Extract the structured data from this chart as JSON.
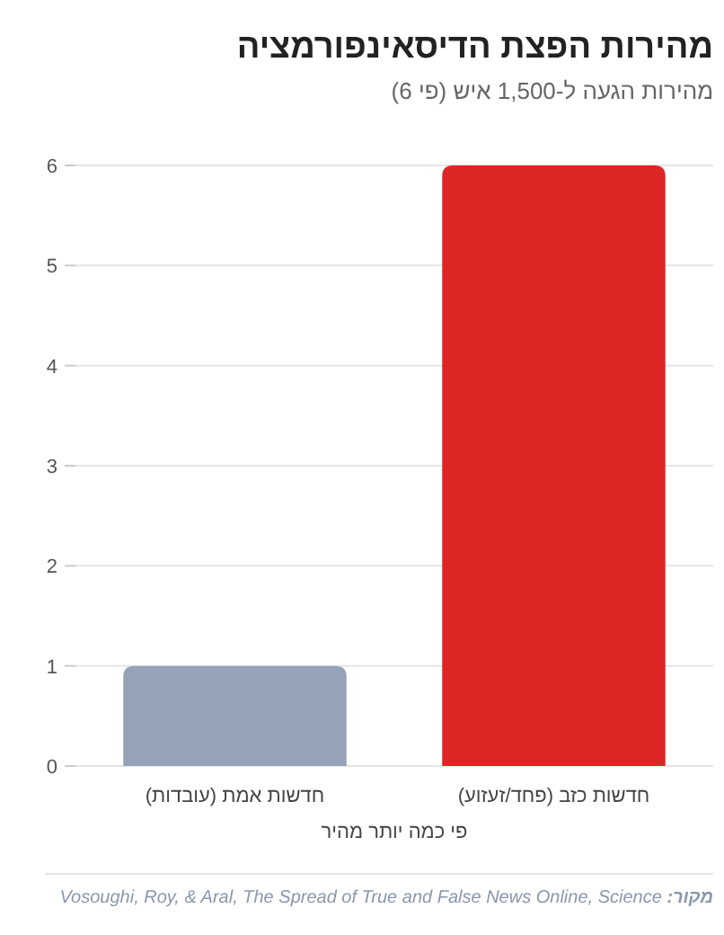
{
  "chart_data": {
    "type": "bar",
    "title": "מהירות הפצת הדיסאינפורמציה",
    "subtitle": "מהירות הגעה ל-1,500 איש (פי 6)",
    "xlabel": "פי כמה יותר מהיר",
    "categories": [
      "חדשות אמת (עובדות)",
      "חדשות כזב (פחד/זעזוע)"
    ],
    "values": [
      1,
      6
    ],
    "colors": [
      "#94a3b8",
      "#dc2626"
    ],
    "ylim": [
      0,
      6
    ],
    "yticks": [
      0,
      1,
      2,
      3,
      4,
      5,
      6
    ],
    "grid": "y",
    "annotations": [
      "**מקור:** Vosoughi, Roy, & Aral, The Spread of True and False News Online, Science"
    ]
  }
}
